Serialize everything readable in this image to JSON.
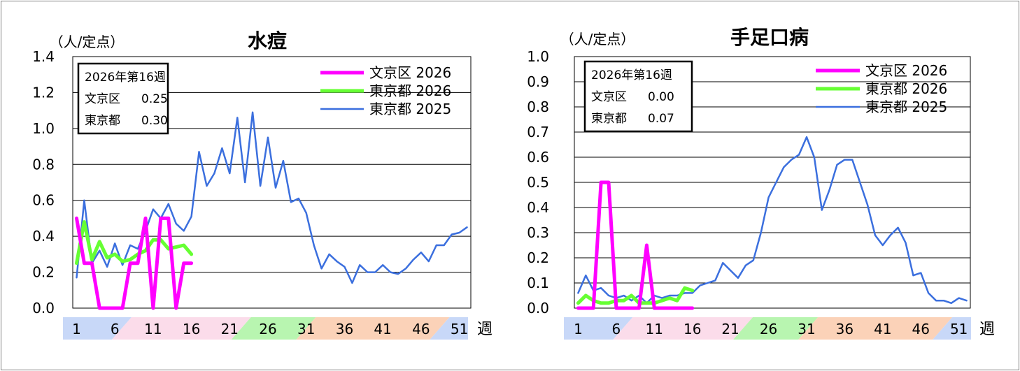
{
  "chart_data": [
    {
      "type": "line",
      "title": "水痘",
      "ylabel": "（人/定点）",
      "xlabel": "週",
      "ylim": [
        0,
        1.4
      ],
      "yticks": [
        "0.0",
        "0.2",
        "0.4",
        "0.6",
        "0.8",
        "1.0",
        "1.2",
        "1.4"
      ],
      "xticks": [
        "1",
        "6",
        "11",
        "16",
        "21",
        "26",
        "31",
        "36",
        "41",
        "46",
        "51"
      ],
      "grid": true,
      "legend_position": "top-right",
      "info_box": {
        "title": "2026年第16週",
        "rows": [
          {
            "label": "文京区",
            "value": "0.25"
          },
          {
            "label": "東京都",
            "value": "0.30"
          }
        ]
      },
      "series": [
        {
          "name": "文京区 2026",
          "color": "#ff00ff",
          "values": [
            0.5,
            0.25,
            0.25,
            0,
            0,
            0,
            0,
            0.25,
            0.25,
            0.5,
            0,
            0.5,
            0.5,
            0,
            0.25,
            0.25
          ]
        },
        {
          "name": "東京都 2026",
          "color": "#66ff33",
          "values": [
            0.25,
            0.48,
            0.27,
            0.37,
            0.28,
            0.3,
            0.26,
            0.27,
            0.3,
            0.32,
            0.38,
            0.38,
            0.33,
            0.34,
            0.35,
            0.3
          ]
        },
        {
          "name": "東京都 2025",
          "color": "#3b6fde",
          "values": [
            0.17,
            0.6,
            0.25,
            0.32,
            0.23,
            0.36,
            0.24,
            0.35,
            0.33,
            0.43,
            0.55,
            0.5,
            0.58,
            0.47,
            0.43,
            0.51,
            0.87,
            0.68,
            0.75,
            0.89,
            0.75,
            1.06,
            0.7,
            1.09,
            0.68,
            0.95,
            0.67,
            0.82,
            0.59,
            0.61,
            0.53,
            0.35,
            0.22,
            0.3,
            0.26,
            0.23,
            0.14,
            0.24,
            0.2,
            0.2,
            0.24,
            0.2,
            0.19,
            0.22,
            0.27,
            0.31,
            0.26,
            0.35,
            0.35,
            0.41,
            0.42,
            0.45
          ]
        }
      ]
    },
    {
      "type": "line",
      "title": "手足口病",
      "ylabel": "（人/定点）",
      "xlabel": "週",
      "ylim": [
        0,
        1.0
      ],
      "yticks": [
        "0.0",
        "0.1",
        "0.2",
        "0.3",
        "0.4",
        "0.5",
        "0.6",
        "0.7",
        "0.8",
        "0.9",
        "1.0"
      ],
      "xticks": [
        "1",
        "6",
        "11",
        "16",
        "21",
        "26",
        "31",
        "36",
        "41",
        "46",
        "51"
      ],
      "grid": true,
      "legend_position": "top-right",
      "info_box": {
        "title": "2026年第16週",
        "rows": [
          {
            "label": "文京区",
            "value": "0.00"
          },
          {
            "label": "東京都",
            "value": "0.07"
          }
        ]
      },
      "series": [
        {
          "name": "文京区 2026",
          "color": "#ff00ff",
          "values": [
            0,
            0,
            0,
            0.5,
            0.5,
            0,
            0,
            0,
            0,
            0.25,
            0,
            0,
            0,
            0,
            0,
            0
          ]
        },
        {
          "name": "東京都 2026",
          "color": "#66ff33",
          "values": [
            0.02,
            0.05,
            0.03,
            0.02,
            0.02,
            0.03,
            0.03,
            0.05,
            0.02,
            0.02,
            0.02,
            0.03,
            0.04,
            0.03,
            0.08,
            0.07
          ]
        },
        {
          "name": "東京都 2025",
          "color": "#3b6fde",
          "values": [
            0.06,
            0.13,
            0.07,
            0.08,
            0.05,
            0.04,
            0.05,
            0.03,
            0.05,
            0.02,
            0.05,
            0.04,
            0.05,
            0.05,
            0.06,
            0.06,
            0.09,
            0.1,
            0.11,
            0.18,
            0.15,
            0.12,
            0.17,
            0.19,
            0.3,
            0.44,
            0.5,
            0.56,
            0.59,
            0.61,
            0.68,
            0.6,
            0.39,
            0.47,
            0.57,
            0.59,
            0.59,
            0.5,
            0.41,
            0.29,
            0.25,
            0.29,
            0.32,
            0.26,
            0.13,
            0.14,
            0.06,
            0.03,
            0.03,
            0.02,
            0.04,
            0.03
          ]
        }
      ]
    }
  ],
  "season_colors": [
    "#c8d8f8",
    "#fbdcea",
    "#b8f5b0",
    "#fbd2b8",
    "#c8d8f8"
  ]
}
